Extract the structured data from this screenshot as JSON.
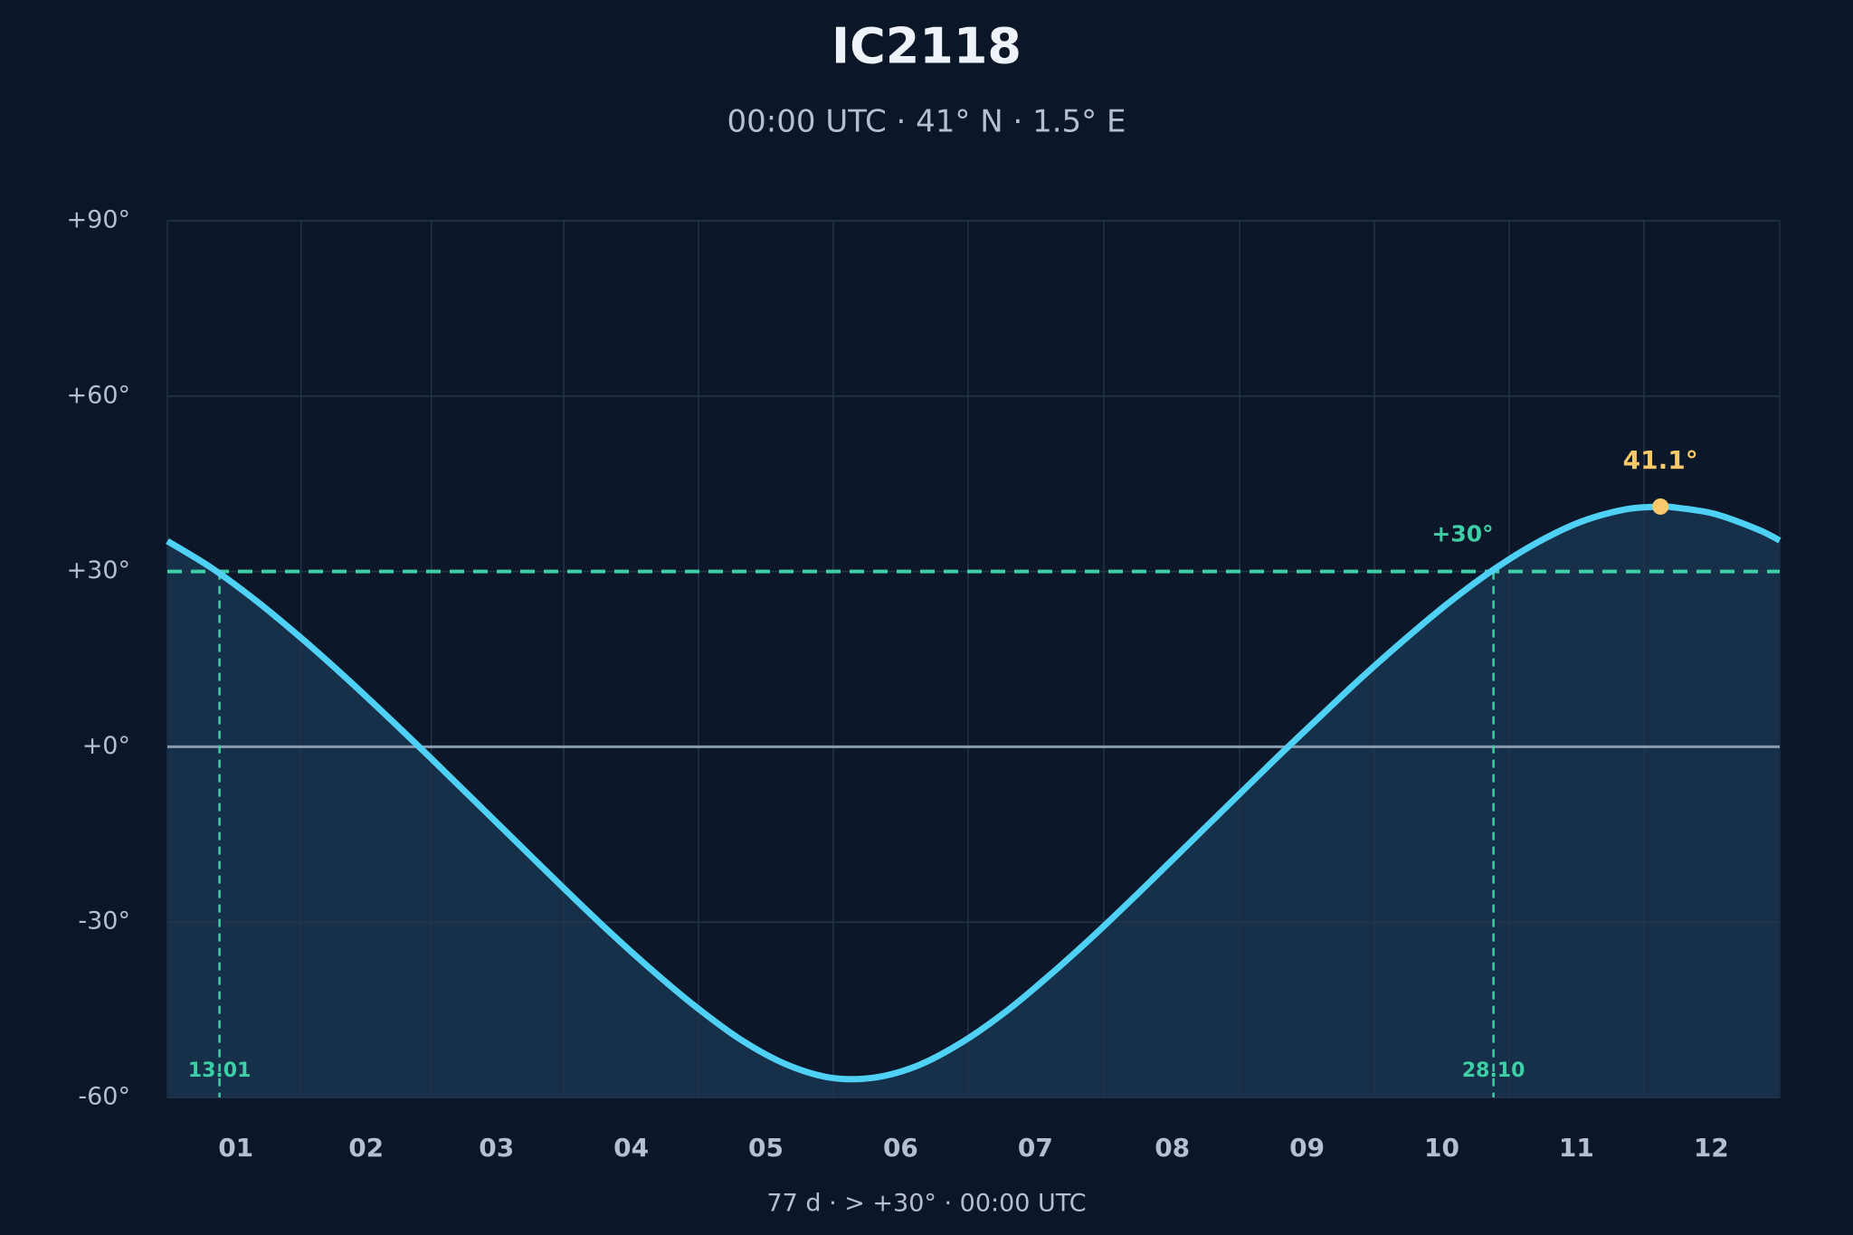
{
  "chart_data": {
    "type": "line",
    "title": "IC2118",
    "subtitle": "00:00 UTC · 41° N · 1.5° E",
    "footer": "77 d  ·  > +30°  ·  00:00 UTC",
    "x": [
      0,
      10,
      20,
      30,
      40,
      50,
      60,
      70,
      80,
      90,
      100,
      110,
      120,
      130,
      140,
      150,
      160,
      170,
      180,
      190,
      200,
      210,
      220,
      230,
      240,
      250,
      260,
      270,
      280,
      290,
      300,
      310,
      320,
      330,
      338,
      340,
      350,
      360,
      365
    ],
    "series": [
      {
        "name": "IC2118",
        "color": "#4fd0f5",
        "values": [
          35.2,
          30.6,
          25.05,
          18.8,
          12.1,
          5.05,
          -2.2,
          -9.6,
          -17.0,
          -24.4,
          -31.6,
          -38.4,
          -44.7,
          -50.2,
          -54.3,
          -56.6,
          -56.6,
          -54.5,
          -50.5,
          -45.2,
          -38.9,
          -32.1,
          -24.9,
          -17.5,
          -10.1,
          -2.7,
          4.5,
          11.6,
          18.3,
          24.6,
          30.2,
          34.9,
          38.5,
          40.6,
          41.1,
          41.06,
          39.9,
          37.2,
          35.3
        ]
      }
    ],
    "xlim": [
      0,
      365
    ],
    "ylim": [
      -60,
      90
    ],
    "xticks": [
      {
        "value": 15.5,
        "label": "01"
      },
      {
        "value": 45,
        "label": "02"
      },
      {
        "value": 74.5,
        "label": "03"
      },
      {
        "value": 105,
        "label": "04"
      },
      {
        "value": 135.5,
        "label": "05"
      },
      {
        "value": 166,
        "label": "06"
      },
      {
        "value": 196.5,
        "label": "07"
      },
      {
        "value": 227.5,
        "label": "08"
      },
      {
        "value": 258,
        "label": "09"
      },
      {
        "value": 288.5,
        "label": "10"
      },
      {
        "value": 319,
        "label": "11"
      },
      {
        "value": 349.5,
        "label": "12"
      }
    ],
    "yticks": [
      {
        "value": 90,
        "label": "+90°"
      },
      {
        "value": 60,
        "label": "+60°"
      },
      {
        "value": 30,
        "label": "+30°"
      },
      {
        "value": 0,
        "label": "+0°"
      },
      {
        "value": -30,
        "label": "-30°"
      },
      {
        "value": -60,
        "label": "-60°"
      }
    ],
    "grid": true,
    "threshold": {
      "value": 30,
      "label": "+30°",
      "color": "#3ecfa6"
    },
    "crossings": [
      {
        "x": 11.8,
        "label": "13.01"
      },
      {
        "x": 300.2,
        "label": "28.10"
      }
    ],
    "peak": {
      "x": 338,
      "value": 41.1,
      "label": "41.1°",
      "color": "#f7c96a"
    }
  }
}
